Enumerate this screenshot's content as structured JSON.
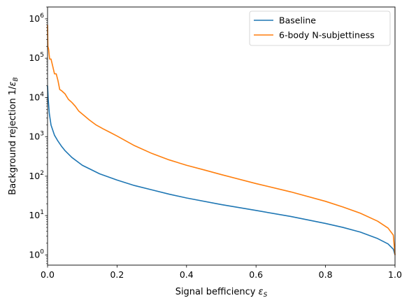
{
  "chart_data": {
    "type": "line",
    "xlabel": "Signal befficiency ",
    "xlabel_symbol": "ε",
    "xlabel_sub": "S",
    "ylabel": "Background rejection 1/",
    "ylabel_symbol": "ε",
    "ylabel_sub": "B",
    "xlim": [
      0.0,
      1.0
    ],
    "ylim": [
      0.55,
      2000000
    ],
    "yscale": "log",
    "grid": false,
    "legend_position": "top-right",
    "x_ticks": [
      0.0,
      0.2,
      0.4,
      0.6,
      0.8,
      1.0
    ],
    "x_tick_labels": [
      "0.0",
      "0.2",
      "0.4",
      "0.6",
      "0.8",
      "1.0"
    ],
    "y_ticks": [
      1,
      10,
      100,
      1000,
      10000,
      100000,
      1000000
    ],
    "y_tick_mantissa": [
      "10",
      "10",
      "10",
      "10",
      "10",
      "10",
      "10"
    ],
    "y_tick_exponents": [
      "0",
      "1",
      "2",
      "3",
      "4",
      "5",
      "6"
    ],
    "series": [
      {
        "name": "Baseline",
        "color": "#1f77b4",
        "x": [
          0.0,
          0.002,
          0.005,
          0.01,
          0.02,
          0.03,
          0.04,
          0.05,
          0.07,
          0.1,
          0.15,
          0.2,
          0.25,
          0.3,
          0.35,
          0.4,
          0.5,
          0.6,
          0.7,
          0.8,
          0.85,
          0.9,
          0.95,
          0.98,
          0.995,
          1.0
        ],
        "y": [
          20000,
          9000,
          4000,
          2000,
          1100,
          780,
          580,
          450,
          300,
          190,
          115,
          80,
          58,
          45,
          35,
          28,
          19,
          13.5,
          9.5,
          6.3,
          5.0,
          3.8,
          2.6,
          1.9,
          1.4,
          1.0
        ]
      },
      {
        "name": "6-body N-subjettiness",
        "color": "#ff7f0e",
        "x": [
          0.0,
          0.001,
          0.003,
          0.006,
          0.01,
          0.015,
          0.02,
          0.025,
          0.03,
          0.035,
          0.04,
          0.05,
          0.06,
          0.07,
          0.08,
          0.09,
          0.1,
          0.12,
          0.14,
          0.16,
          0.18,
          0.2,
          0.25,
          0.3,
          0.35,
          0.4,
          0.45,
          0.5,
          0.6,
          0.7,
          0.8,
          0.85,
          0.9,
          0.95,
          0.98,
          0.995,
          1.0
        ],
        "y": [
          700000,
          200000,
          170000,
          95000,
          95000,
          62000,
          40000,
          40000,
          27000,
          16000,
          15000,
          12500,
          9000,
          7500,
          6000,
          4500,
          3800,
          2700,
          2000,
          1600,
          1300,
          1050,
          600,
          380,
          260,
          190,
          145,
          110,
          65,
          40,
          23,
          16.5,
          11.5,
          7.2,
          4.8,
          3.2,
          1.0
        ]
      }
    ]
  }
}
